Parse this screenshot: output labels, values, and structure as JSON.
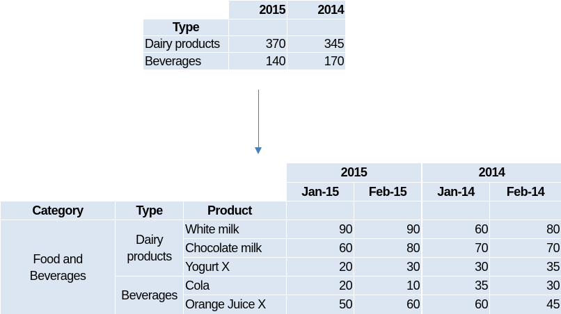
{
  "top_table": {
    "years": [
      "2015",
      "2014"
    ],
    "type_header": "Type",
    "rows": [
      {
        "label": "Dairy products",
        "values": [
          "370",
          "345"
        ]
      },
      {
        "label": "Beverages",
        "values": [
          "140",
          "170"
        ]
      }
    ]
  },
  "bottom_table": {
    "years": [
      "2015",
      "2014"
    ],
    "months": [
      "Jan-15",
      "Feb-15",
      "Jan-14",
      "Feb-14"
    ],
    "headers": {
      "category": "Category",
      "type": "Type",
      "product": "Product"
    },
    "category": {
      "line1": "Food and",
      "line2": "Beverages"
    },
    "types": {
      "dairy": {
        "line1": "Dairy",
        "line2": "products"
      },
      "beverages": "Beverages"
    },
    "rows": [
      {
        "product": "White milk",
        "values": [
          "90",
          "90",
          "60",
          "80"
        ]
      },
      {
        "product": "Chocolate milk",
        "values": [
          "60",
          "80",
          "70",
          "70"
        ]
      },
      {
        "product": "Yogurt X",
        "values": [
          "20",
          "30",
          "30",
          "35"
        ]
      },
      {
        "product": "Cola",
        "values": [
          "20",
          "10",
          "35",
          "30"
        ]
      },
      {
        "product": "Orange Juice X",
        "values": [
          "50",
          "60",
          "60",
          "45"
        ]
      }
    ]
  },
  "colors": {
    "cell_fill": "#dce6f2",
    "arrow": "#4a7ebb"
  }
}
